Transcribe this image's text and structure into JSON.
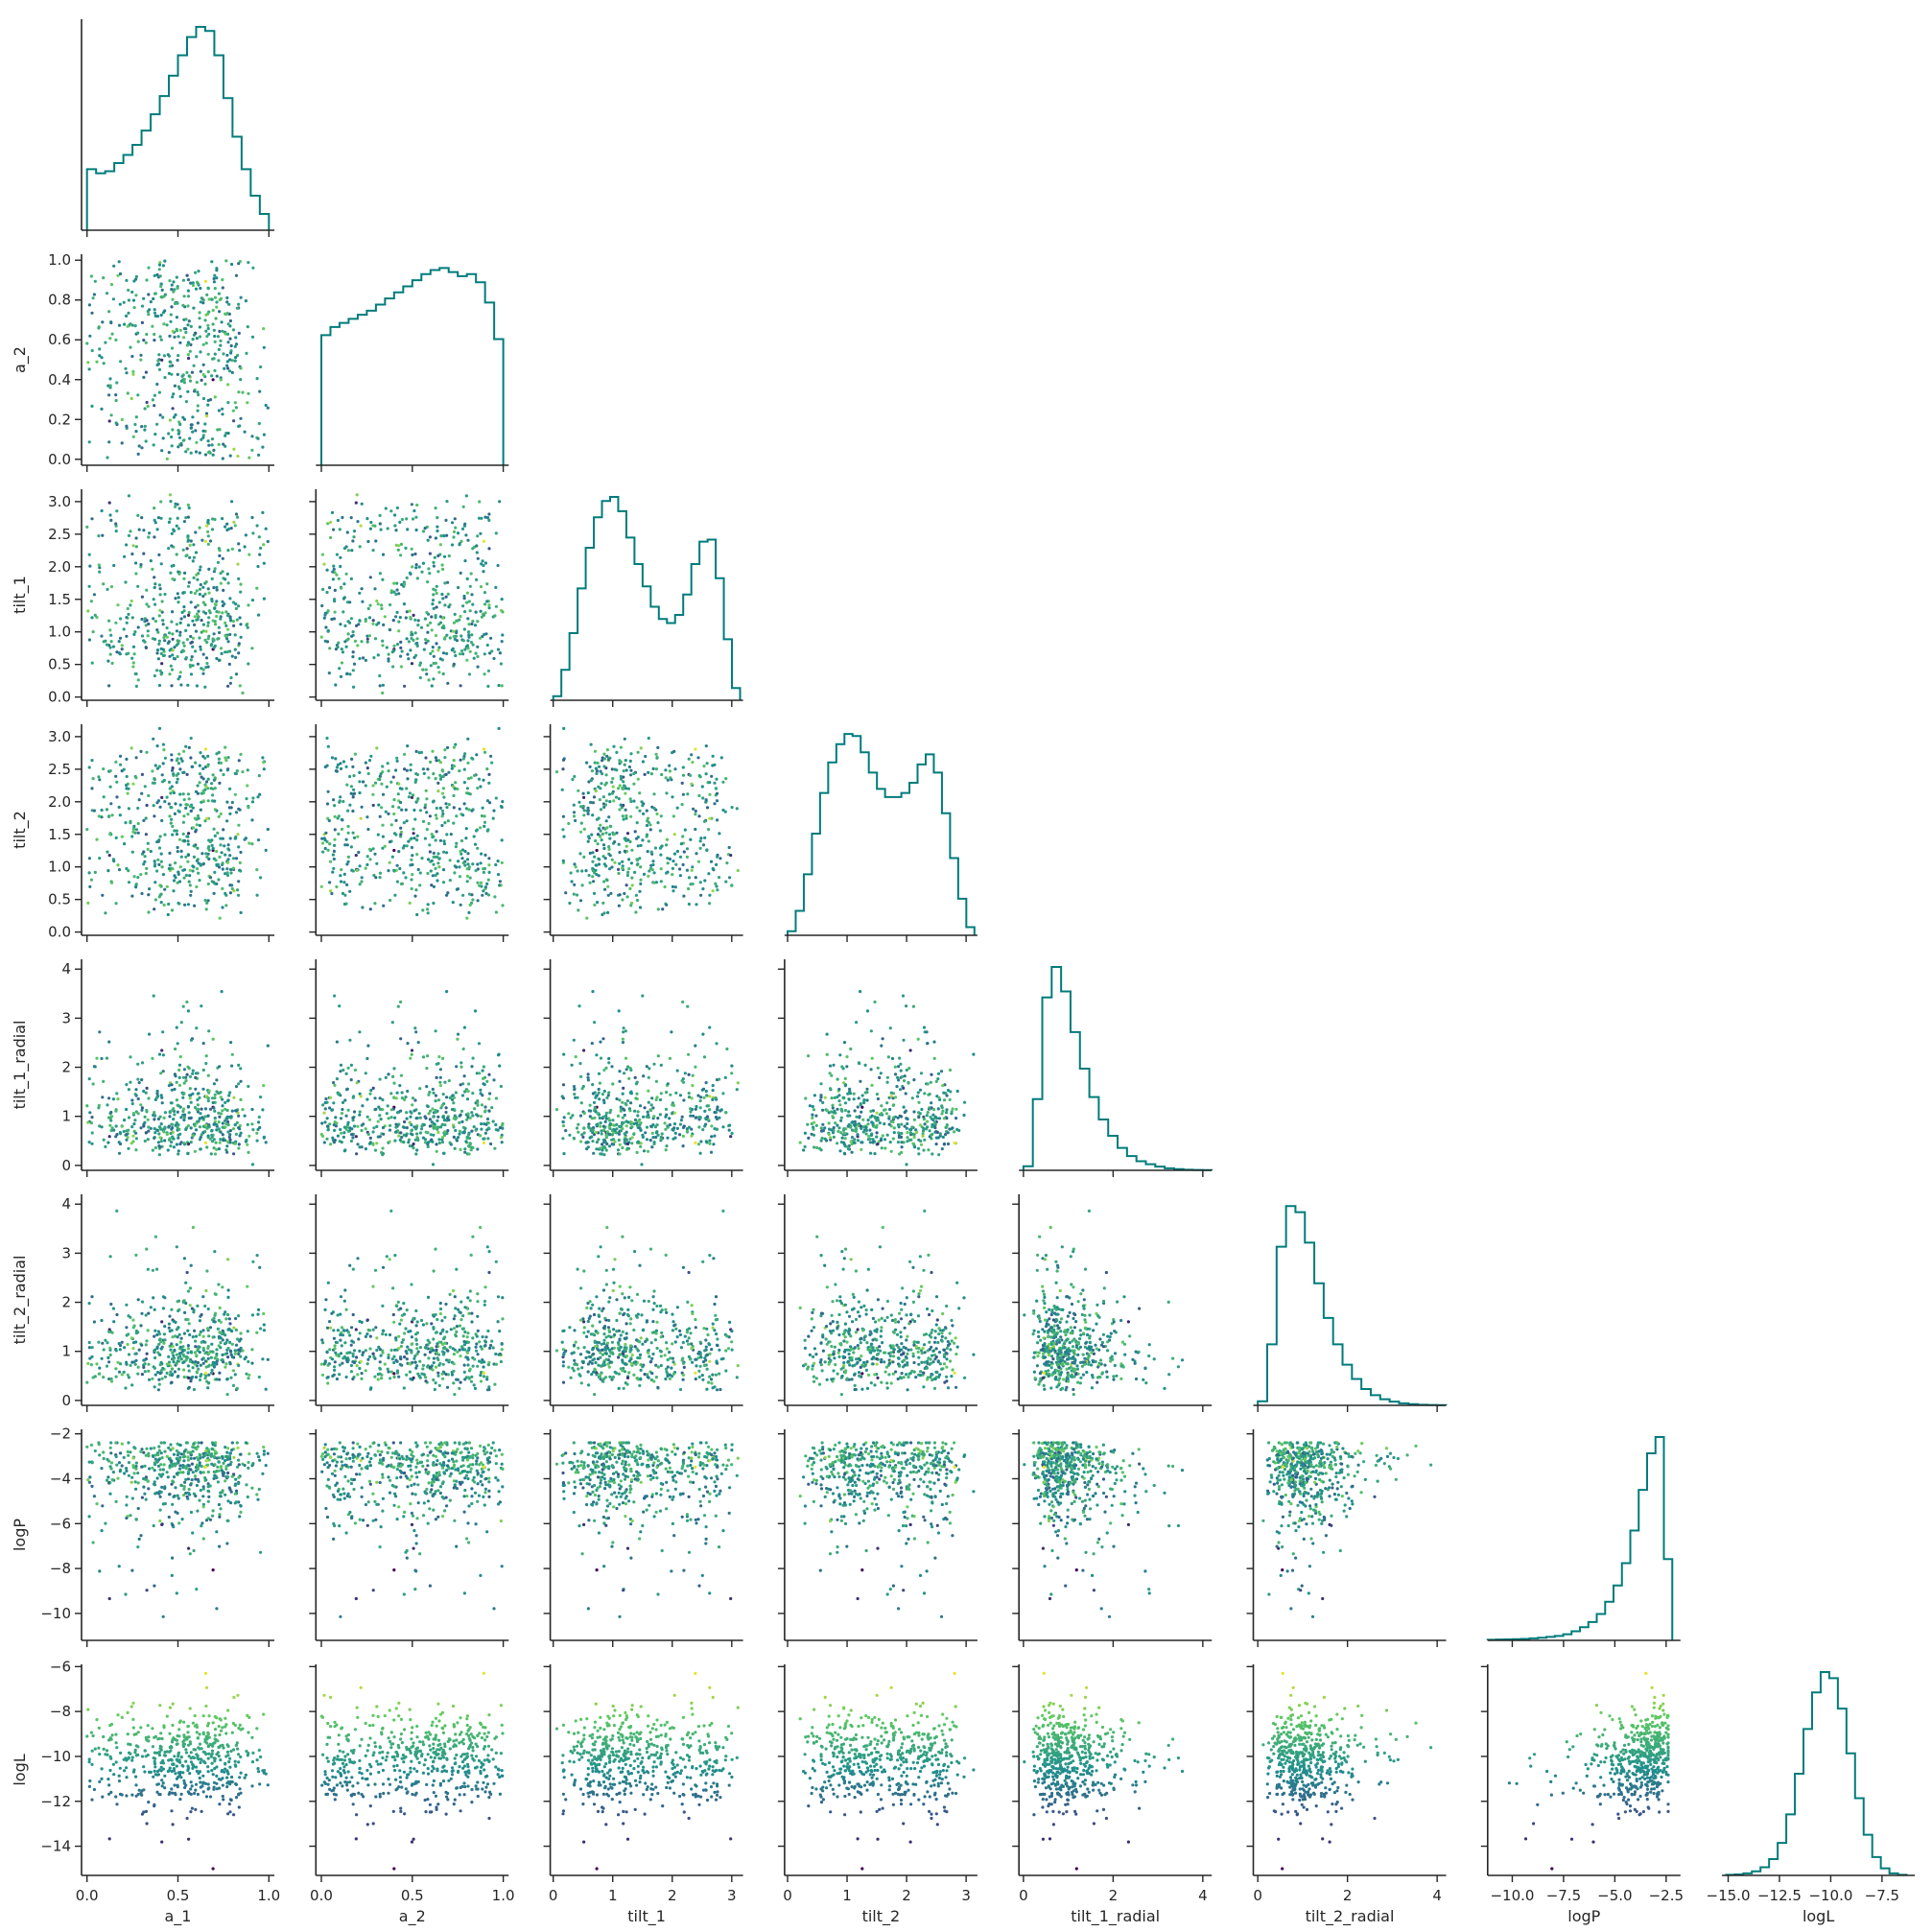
{
  "chart_data": {
    "type": "scatter",
    "subtype": "corner-plot",
    "variables": [
      "a_1",
      "a_2",
      "tilt_1",
      "tilt_2",
      "tilt_1_radial",
      "tilt_2_radial",
      "logP",
      "logL"
    ],
    "xlabels": [
      "a_1",
      "a_2",
      "tilt_1",
      "tilt_2",
      "tilt_1_radial",
      "tilt_2_radial",
      "logP",
      "logL"
    ],
    "ylabels": [
      "",
      "a_2",
      "tilt_1",
      "tilt_2",
      "tilt_1_radial",
      "tilt_2_radial",
      "logP",
      "logL"
    ],
    "ranges": [
      [
        -0.03,
        1.03
      ],
      [
        -0.03,
        1.03
      ],
      [
        -0.05,
        3.19
      ],
      [
        -0.05,
        3.19
      ],
      [
        -0.1,
        4.2
      ],
      [
        -0.1,
        4.2
      ],
      [
        -11.2,
        -1.8
      ],
      [
        -15.3,
        -5.9
      ]
    ],
    "xticks": [
      [
        0.0,
        0.5,
        1.0
      ],
      [
        0.0,
        0.5,
        1.0
      ],
      [
        0,
        1,
        2,
        3
      ],
      [
        0,
        1,
        2,
        3
      ],
      [
        0,
        2,
        4
      ],
      [
        0,
        2,
        4
      ],
      [
        -10.0,
        -7.5,
        -5.0,
        -2.5
      ],
      [
        -15.0,
        -12.5,
        -10.0,
        -7.5
      ]
    ],
    "xticklabels": [
      [
        "0.0",
        "0.5",
        "1.0"
      ],
      [
        "0.0",
        "0.5",
        "1.0"
      ],
      [
        "0",
        "1",
        "2",
        "3"
      ],
      [
        "0",
        "1",
        "2",
        "3"
      ],
      [
        "0",
        "2",
        "4"
      ],
      [
        "0",
        "2",
        "4"
      ],
      [
        "−10.0",
        "−7.5",
        "−5.0",
        "−2.5"
      ],
      [
        "−15.0",
        "−12.5",
        "−10.0",
        "−7.5"
      ]
    ],
    "yticks": [
      [],
      [
        0.0,
        0.2,
        0.4,
        0.6,
        0.8,
        1.0
      ],
      [
        0.0,
        0.5,
        1.0,
        1.5,
        2.0,
        2.5,
        3.0
      ],
      [
        0.0,
        0.5,
        1.0,
        1.5,
        2.0,
        2.5,
        3.0
      ],
      [
        0,
        1,
        2,
        3,
        4
      ],
      [
        0,
        1,
        2,
        3,
        4
      ],
      [
        -10,
        -8,
        -6,
        -4,
        -2
      ],
      [
        -14,
        -12,
        -10,
        -8,
        -6
      ]
    ],
    "yticklabels": [
      [],
      [
        "0.0",
        "0.2",
        "0.4",
        "0.6",
        "0.8",
        "1.0"
      ],
      [
        "0.0",
        "0.5",
        "1.0",
        "1.5",
        "2.0",
        "2.5",
        "3.0"
      ],
      [
        "0.0",
        "0.5",
        "1.0",
        "1.5",
        "2.0",
        "2.5",
        "3.0"
      ],
      [
        "0",
        "1",
        "2",
        "3",
        "4"
      ],
      [
        "0",
        "1",
        "2",
        "3",
        "4"
      ],
      [
        "−10",
        "−8",
        "−6",
        "−4",
        "−2"
      ],
      [
        "−14",
        "−12",
        "−10",
        "−8",
        "−6"
      ]
    ],
    "histograms": [
      {
        "variable": "a_1",
        "range": [
          0.0,
          1.0
        ],
        "counts": [
          0.3,
          0.28,
          0.29,
          0.33,
          0.37,
          0.42,
          0.49,
          0.57,
          0.66,
          0.76,
          0.86,
          0.95,
          1.0,
          0.98,
          0.86,
          0.65,
          0.46,
          0.3,
          0.17,
          0.08
        ]
      },
      {
        "variable": "a_2",
        "range": [
          0.0,
          1.0
        ],
        "counts": [
          0.64,
          0.68,
          0.7,
          0.72,
          0.74,
          0.76,
          0.79,
          0.82,
          0.85,
          0.88,
          0.91,
          0.94,
          0.96,
          0.97,
          0.95,
          0.93,
          0.94,
          0.9,
          0.8,
          0.62
        ]
      },
      {
        "variable": "tilt_1",
        "range": [
          0.0,
          3.14
        ],
        "counts": [
          0.02,
          0.15,
          0.33,
          0.55,
          0.75,
          0.9,
          0.98,
          1.0,
          0.93,
          0.8,
          0.67,
          0.56,
          0.46,
          0.4,
          0.38,
          0.42,
          0.52,
          0.67,
          0.78,
          0.79,
          0.6,
          0.3,
          0.06
        ]
      },
      {
        "variable": "tilt_2",
        "range": [
          0.0,
          3.14
        ],
        "counts": [
          0.02,
          0.12,
          0.3,
          0.5,
          0.7,
          0.85,
          0.94,
          0.99,
          0.98,
          0.9,
          0.8,
          0.72,
          0.68,
          0.68,
          0.7,
          0.75,
          0.84,
          0.89,
          0.8,
          0.6,
          0.38,
          0.18,
          0.04
        ]
      },
      {
        "variable": "tilt_1_radial",
        "range": [
          0.0,
          4.2
        ],
        "counts": [
          0.02,
          0.35,
          0.85,
          1.0,
          0.88,
          0.68,
          0.5,
          0.36,
          0.25,
          0.17,
          0.11,
          0.07,
          0.045,
          0.03,
          0.018,
          0.01,
          0.006,
          0.003,
          0.002,
          0.001
        ]
      },
      {
        "variable": "tilt_2_radial",
        "range": [
          0.0,
          4.2
        ],
        "counts": [
          0.02,
          0.3,
          0.78,
          0.98,
          0.95,
          0.8,
          0.6,
          0.43,
          0.3,
          0.2,
          0.13,
          0.08,
          0.05,
          0.03,
          0.018,
          0.01,
          0.006,
          0.003,
          0.002,
          0.001
        ]
      },
      {
        "variable": "logP",
        "range": [
          -11.2,
          -2.2
        ],
        "counts": [
          0.003,
          0.004,
          0.005,
          0.006,
          0.007,
          0.01,
          0.013,
          0.017,
          0.022,
          0.03,
          0.045,
          0.065,
          0.09,
          0.13,
          0.19,
          0.27,
          0.38,
          0.54,
          0.74,
          0.92,
          1.0,
          0.4
        ]
      },
      {
        "variable": "logL",
        "range": [
          -15.1,
          -6.3
        ],
        "counts": [
          0.003,
          0.005,
          0.01,
          0.02,
          0.04,
          0.08,
          0.16,
          0.3,
          0.5,
          0.72,
          0.9,
          1.0,
          0.97,
          0.82,
          0.6,
          0.38,
          0.2,
          0.09,
          0.035,
          0.01,
          0.003
        ]
      }
    ],
    "grid": false,
    "legend": "none"
  }
}
